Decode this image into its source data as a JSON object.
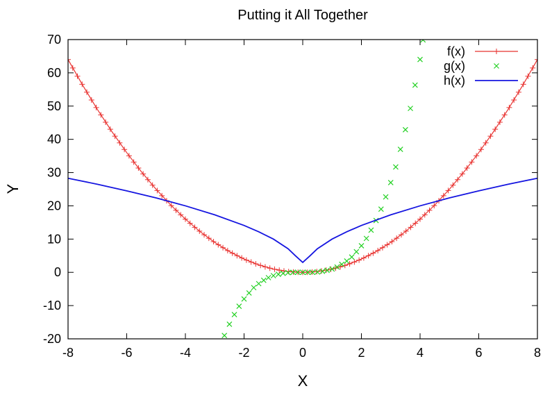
{
  "chart_data": {
    "type": "line",
    "title": "Putting it All Together",
    "xlabel": "X",
    "ylabel": "Y",
    "xlim": [
      -8,
      8
    ],
    "ylim": [
      -20,
      70
    ],
    "xticks": [
      "-8",
      "-6",
      "-4",
      "-2",
      "0",
      "2",
      "4",
      "6",
      "8"
    ],
    "yticks": [
      "-20",
      "-10",
      "0",
      "10",
      "20",
      "30",
      "40",
      "50",
      "60",
      "70"
    ],
    "grid": false,
    "legend_position": "top-right",
    "series": [
      {
        "name": "f(x)",
        "style": "line+plus-markers",
        "color": "#e8312f",
        "x": [
          -8,
          -7.5,
          -7,
          -6.5,
          -6,
          -5.5,
          -5,
          -4.5,
          -4,
          -3.5,
          -3,
          -2.5,
          -2,
          -1.5,
          -1,
          -0.5,
          0,
          0.5,
          1,
          1.5,
          2,
          2.5,
          3,
          3.5,
          4,
          4.5,
          5,
          5.5,
          6,
          6.5,
          7,
          7.5,
          8
        ],
        "y": [
          64,
          56.25,
          49,
          42.25,
          36,
          30.25,
          25,
          20.25,
          16,
          12.25,
          9,
          6.25,
          4,
          2.25,
          1,
          0.25,
          0,
          0.25,
          1,
          2.25,
          4,
          6.25,
          9,
          12.25,
          16,
          20.25,
          25,
          30.25,
          36,
          42.25,
          49,
          56.25,
          64
        ]
      },
      {
        "name": "g(x)",
        "style": "cross-markers",
        "color": "#22d022",
        "x": [
          -2.67,
          -2.5,
          -2.33,
          -2.17,
          -2,
          -1.83,
          -1.67,
          -1.5,
          -1.33,
          -1.17,
          -1,
          -0.83,
          -0.67,
          -0.5,
          -0.33,
          -0.17,
          0,
          0.17,
          0.33,
          0.5,
          0.67,
          0.83,
          1,
          1.17,
          1.33,
          1.5,
          1.67,
          1.83,
          2,
          2.17,
          2.33,
          2.5,
          2.67,
          2.83,
          3,
          3.17,
          3.33,
          3.5,
          3.67,
          3.83,
          4,
          4.1
        ],
        "y": [
          -19,
          -15.6,
          -12.7,
          -10.2,
          -8,
          -6.2,
          -4.6,
          -3.4,
          -2.4,
          -1.6,
          -1,
          -0.6,
          -0.3,
          -0.1,
          0,
          0,
          0,
          0,
          0,
          0.1,
          0.3,
          0.6,
          1,
          1.6,
          2.4,
          3.4,
          4.6,
          6.2,
          8,
          10.2,
          12.7,
          15.6,
          19,
          22.7,
          27,
          31.7,
          37,
          42.9,
          49.3,
          56.3,
          64,
          69.9
        ]
      },
      {
        "name": "h(x)",
        "style": "line",
        "color": "#1515e0",
        "x": [
          -8,
          -7,
          -6,
          -5,
          -4,
          -3,
          -2,
          -1.5,
          -1,
          -0.5,
          -0.25,
          0,
          0.25,
          0.5,
          1,
          1.5,
          2,
          3,
          4,
          5,
          6,
          7,
          8
        ],
        "y": [
          28.3,
          26.5,
          24.5,
          22.4,
          20,
          17.3,
          14.1,
          12.2,
          10,
          7.1,
          5.0,
          3,
          5.0,
          7.1,
          10,
          12.2,
          14.1,
          17.3,
          20,
          22.4,
          24.5,
          26.5,
          28.3
        ]
      }
    ]
  }
}
